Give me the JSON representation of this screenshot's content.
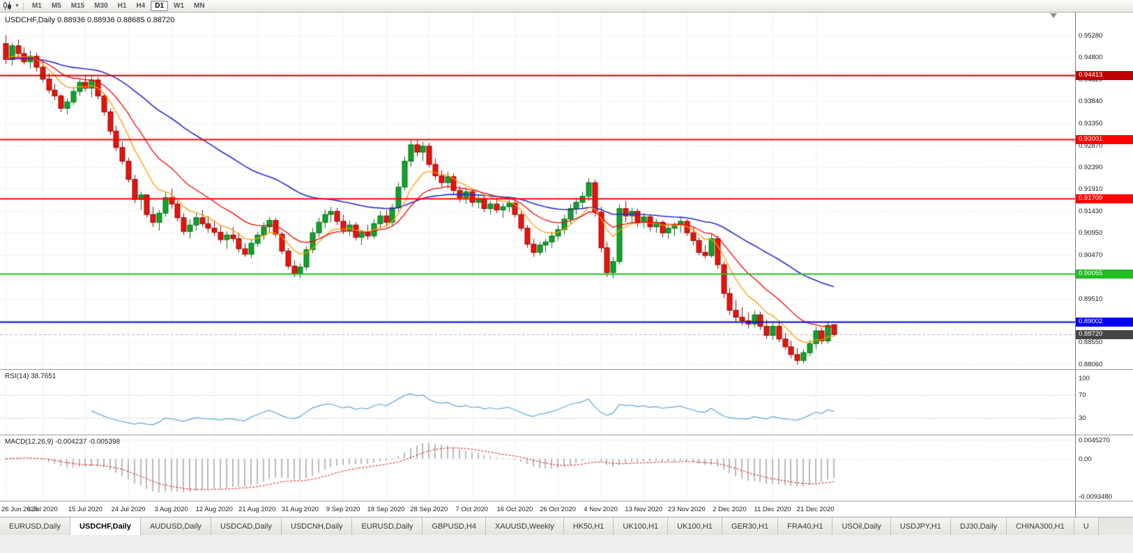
{
  "toolbar": {
    "timeframes": [
      "M1",
      "M5",
      "M15",
      "M30",
      "H1",
      "H4",
      "D1",
      "W1",
      "MN"
    ],
    "active_timeframe": "D1"
  },
  "chart": {
    "symbol": "USDCHF,Daily",
    "title": "USDCHF,Daily 0.88936 0.88936 0.88685 0.88720",
    "ohlc": {
      "open": "0.88936",
      "high": "0.88936",
      "low": "0.88685",
      "close": "0.88720"
    }
  },
  "indicators": {
    "rsi": {
      "label": "RSI(14) 38.7651"
    },
    "macd": {
      "label": "MACD(12,26,9) -0.004237 -0.005398"
    }
  },
  "tabs": [
    {
      "label": "EURUSD,Daily"
    },
    {
      "label": "USDCHF,Daily",
      "active": true
    },
    {
      "label": "AUDUSD,Daily"
    },
    {
      "label": "USDCAD,Daily"
    },
    {
      "label": "USDCNH,Daily"
    },
    {
      "label": "EURUSD,Daily"
    },
    {
      "label": "GBPUSD,H4"
    },
    {
      "label": "XAUUSD,Weekly"
    },
    {
      "label": "HK50,H1"
    },
    {
      "label": "UK100,H1"
    },
    {
      "label": "UK100,H1"
    },
    {
      "label": "GER30,H1"
    },
    {
      "label": "FRA40,H1"
    },
    {
      "label": "USOil,Daily"
    },
    {
      "label": "USDJPY,H1"
    },
    {
      "label": "DJ30,Daily"
    },
    {
      "label": "CHINA300,H1"
    },
    {
      "label": "U"
    }
  ],
  "chart_data": {
    "type": "candlestick",
    "symbol": "USDCHF",
    "timeframe": "Daily",
    "y_range": [
      0.8796,
      0.9578
    ],
    "y_ticks": [
      "0.95280",
      "0.94800",
      "0.94320",
      "0.93840",
      "0.93350",
      "0.92870",
      "0.92390",
      "0.91910",
      "0.91430",
      "0.90950",
      "0.90470",
      "0.89990",
      "0.89510",
      "0.89030",
      "0.88550",
      "0.88060"
    ],
    "x_axis_labels": [
      "26 Jun 2020",
      "6 Jul 2020",
      "15 Jul 2020",
      "24 Jul 2020",
      "3 Aug 2020",
      "12 Aug 2020",
      "21 Aug 2020",
      "31 Aug 2020",
      "9 Sep 2020",
      "18 Sep 2020",
      "28 Sep 2020",
      "7 Oct 2020",
      "16 Oct 2020",
      "26 Oct 2020",
      "4 Nov 2020",
      "13 Nov 2020",
      "23 Nov 2020",
      "2 Dec 2020",
      "11 Dec 2020",
      "21 Dec 2020"
    ],
    "label_indices": [
      0,
      6,
      13,
      20,
      27,
      34,
      41,
      48,
      55,
      62,
      69,
      76,
      83,
      90,
      97,
      104,
      111,
      118,
      125,
      132
    ],
    "colors": {
      "up": "#0fa32a",
      "up_border": "#077018",
      "down": "#e8130c",
      "down_border": "#930a05",
      "grid": "#d9d9d9"
    },
    "horizontal_levels": [
      {
        "value": 0.94413,
        "label": "0.94413",
        "color": "#c00000"
      },
      {
        "value": 0.93001,
        "label": "0.93001",
        "color": "#ff0000"
      },
      {
        "value": 0.91709,
        "label": "0.91709",
        "color": "#ff0000"
      },
      {
        "value": 0.90055,
        "label": "0.90055",
        "color": "#22bb22"
      },
      {
        "value": 0.89002,
        "label": "0.89002",
        "color": "#0000ee"
      }
    ],
    "current_price": {
      "value": 0.8872,
      "label": "0.88720",
      "tag_color": "#454545",
      "line_color": "#b0b0b0"
    },
    "moving_averages": [
      {
        "period": 45,
        "color": "#2929cc",
        "width": 1.6
      },
      {
        "period": 8,
        "color": "#ff9900",
        "width": 1.3
      },
      {
        "period": 16,
        "color": "#f20000",
        "width": 1.3
      }
    ],
    "rsi": {
      "period": 14,
      "value": 38.7651,
      "color": "#58a6d8",
      "levels": [
        70,
        30
      ],
      "scale_labels": [
        {
          "value": 100,
          "label": "100"
        },
        {
          "value": 70,
          "label": "70"
        },
        {
          "value": 30,
          "label": "30"
        }
      ],
      "scale_range": [
        0,
        113
      ]
    },
    "macd": {
      "period_fast": 12,
      "period_slow": 26,
      "period_signal": 9,
      "value": -0.004237,
      "signal": -0.005398,
      "histogram_color": "#b9b9b9",
      "signal_color": "#e01010",
      "scale_labels": [
        {
          "value": 0.004527,
          "label": "0.0045270"
        },
        {
          "value": 0,
          "label": "0.00"
        },
        {
          "value": -0.009348,
          "label": "-0.0093480"
        }
      ],
      "scale_range": [
        -0.0102,
        0.0056
      ]
    },
    "candles": [
      [
        0.951,
        0.9528,
        0.9465,
        0.9475
      ],
      [
        0.9475,
        0.9512,
        0.9462,
        0.9505
      ],
      [
        0.9505,
        0.9519,
        0.948,
        0.9488
      ],
      [
        0.9488,
        0.9502,
        0.9464,
        0.947
      ],
      [
        0.947,
        0.9495,
        0.9455,
        0.9482
      ],
      [
        0.9482,
        0.949,
        0.9448,
        0.9458
      ],
      [
        0.9458,
        0.947,
        0.9425,
        0.9432
      ],
      [
        0.9432,
        0.9445,
        0.94,
        0.9408
      ],
      [
        0.9408,
        0.9422,
        0.9386,
        0.9395
      ],
      [
        0.9395,
        0.94,
        0.936,
        0.9368
      ],
      [
        0.9368,
        0.939,
        0.9355,
        0.9382
      ],
      [
        0.9382,
        0.9415,
        0.9375,
        0.9405
      ],
      [
        0.9405,
        0.9432,
        0.9395,
        0.9425
      ],
      [
        0.9425,
        0.9441,
        0.9405,
        0.9412
      ],
      [
        0.9412,
        0.9438,
        0.9392,
        0.943
      ],
      [
        0.943,
        0.9436,
        0.9388,
        0.9395
      ],
      [
        0.9395,
        0.9402,
        0.9352,
        0.936
      ],
      [
        0.936,
        0.9368,
        0.931,
        0.9318
      ],
      [
        0.9318,
        0.933,
        0.9275,
        0.9282
      ],
      [
        0.9282,
        0.9295,
        0.9245,
        0.9252
      ],
      [
        0.9252,
        0.926,
        0.9205,
        0.9212
      ],
      [
        0.9212,
        0.9222,
        0.916,
        0.9168
      ],
      [
        0.9168,
        0.9185,
        0.9145,
        0.9178
      ],
      [
        0.9178,
        0.918,
        0.9128,
        0.9135
      ],
      [
        0.9135,
        0.9152,
        0.9108,
        0.9118
      ],
      [
        0.9118,
        0.9145,
        0.91,
        0.9138
      ],
      [
        0.9138,
        0.9185,
        0.913,
        0.9172
      ],
      [
        0.9172,
        0.9192,
        0.9148,
        0.9158
      ],
      [
        0.9158,
        0.9165,
        0.912,
        0.9128
      ],
      [
        0.9128,
        0.9138,
        0.909,
        0.9098
      ],
      [
        0.9098,
        0.9125,
        0.9082,
        0.9112
      ],
      [
        0.9112,
        0.9138,
        0.91,
        0.9128
      ],
      [
        0.9128,
        0.9145,
        0.9108,
        0.9115
      ],
      [
        0.9115,
        0.9132,
        0.9095,
        0.9105
      ],
      [
        0.9105,
        0.9122,
        0.9088,
        0.9096
      ],
      [
        0.9096,
        0.911,
        0.9072,
        0.908
      ],
      [
        0.908,
        0.9098,
        0.906,
        0.909
      ],
      [
        0.909,
        0.9108,
        0.9075,
        0.9082
      ],
      [
        0.9082,
        0.9095,
        0.9052,
        0.906
      ],
      [
        0.906,
        0.9072,
        0.9042,
        0.9048
      ],
      [
        0.9048,
        0.908,
        0.904,
        0.9072
      ],
      [
        0.9072,
        0.9098,
        0.9065,
        0.909
      ],
      [
        0.909,
        0.9118,
        0.908,
        0.9108
      ],
      [
        0.9108,
        0.913,
        0.9095,
        0.9122
      ],
      [
        0.9122,
        0.9128,
        0.9085,
        0.9092
      ],
      [
        0.9092,
        0.9098,
        0.9048,
        0.9055
      ],
      [
        0.9055,
        0.9062,
        0.9015,
        0.9022
      ],
      [
        0.9022,
        0.9035,
        0.8998,
        0.9005
      ],
      [
        0.9005,
        0.9028,
        0.8996,
        0.902
      ],
      [
        0.902,
        0.9065,
        0.9012,
        0.9058
      ],
      [
        0.9058,
        0.9105,
        0.905,
        0.9095
      ],
      [
        0.9095,
        0.9128,
        0.9085,
        0.9118
      ],
      [
        0.9118,
        0.9145,
        0.9105,
        0.9135
      ],
      [
        0.9135,
        0.9152,
        0.9118,
        0.9142
      ],
      [
        0.9142,
        0.915,
        0.9112,
        0.912
      ],
      [
        0.912,
        0.9135,
        0.9092,
        0.91
      ],
      [
        0.91,
        0.9122,
        0.9088,
        0.9112
      ],
      [
        0.9112,
        0.9118,
        0.9078,
        0.9085
      ],
      [
        0.9085,
        0.9102,
        0.9068,
        0.9095
      ],
      [
        0.9095,
        0.9112,
        0.908,
        0.9088
      ],
      [
        0.9088,
        0.9125,
        0.9082,
        0.9115
      ],
      [
        0.9115,
        0.9142,
        0.9105,
        0.9132
      ],
      [
        0.9132,
        0.9145,
        0.9108,
        0.9118
      ],
      [
        0.9118,
        0.9158,
        0.911,
        0.915
      ],
      [
        0.915,
        0.9205,
        0.9142,
        0.9195
      ],
      [
        0.9195,
        0.9262,
        0.9188,
        0.9252
      ],
      [
        0.9252,
        0.9298,
        0.924,
        0.9288
      ],
      [
        0.9288,
        0.93,
        0.9262,
        0.9272
      ],
      [
        0.9272,
        0.9295,
        0.9252,
        0.9285
      ],
      [
        0.9285,
        0.9292,
        0.9238,
        0.9245
      ],
      [
        0.9245,
        0.9258,
        0.9212,
        0.922
      ],
      [
        0.922,
        0.9232,
        0.9195,
        0.9205
      ],
      [
        0.9205,
        0.9228,
        0.9192,
        0.9218
      ],
      [
        0.9218,
        0.9225,
        0.9178,
        0.9188
      ],
      [
        0.9188,
        0.9198,
        0.9162,
        0.9172
      ],
      [
        0.9172,
        0.9195,
        0.9158,
        0.9185
      ],
      [
        0.9185,
        0.9192,
        0.9152,
        0.9162
      ],
      [
        0.9162,
        0.9178,
        0.9148,
        0.917
      ],
      [
        0.917,
        0.9176,
        0.914,
        0.9148
      ],
      [
        0.9148,
        0.9165,
        0.9135,
        0.9158
      ],
      [
        0.9158,
        0.9172,
        0.9138,
        0.9145
      ],
      [
        0.9145,
        0.916,
        0.9128,
        0.9152
      ],
      [
        0.9152,
        0.9168,
        0.914,
        0.916
      ],
      [
        0.916,
        0.9165,
        0.9128,
        0.9135
      ],
      [
        0.9135,
        0.9142,
        0.9098,
        0.9105
      ],
      [
        0.9105,
        0.9112,
        0.9062,
        0.907
      ],
      [
        0.907,
        0.9082,
        0.9042,
        0.9052
      ],
      [
        0.9052,
        0.9075,
        0.9045,
        0.9068
      ],
      [
        0.9068,
        0.9082,
        0.9052,
        0.9075
      ],
      [
        0.9075,
        0.9098,
        0.9062,
        0.9088
      ],
      [
        0.9088,
        0.9112,
        0.9078,
        0.9102
      ],
      [
        0.9102,
        0.9135,
        0.9092,
        0.9125
      ],
      [
        0.9125,
        0.9158,
        0.9115,
        0.9148
      ],
      [
        0.9148,
        0.9172,
        0.9135,
        0.9162
      ],
      [
        0.9162,
        0.9185,
        0.9148,
        0.9175
      ],
      [
        0.9175,
        0.9215,
        0.9165,
        0.9205
      ],
      [
        0.9205,
        0.9212,
        0.913,
        0.914
      ],
      [
        0.914,
        0.9152,
        0.9052,
        0.9062
      ],
      [
        0.9062,
        0.9075,
        0.8998,
        0.9008
      ],
      [
        0.9008,
        0.9042,
        0.8995,
        0.9032
      ],
      [
        0.9032,
        0.9158,
        0.9025,
        0.9148
      ],
      [
        0.9148,
        0.9165,
        0.9118,
        0.9132
      ],
      [
        0.9132,
        0.915,
        0.9115,
        0.9142
      ],
      [
        0.9142,
        0.9148,
        0.9108,
        0.9118
      ],
      [
        0.9118,
        0.9138,
        0.9105,
        0.913
      ],
      [
        0.913,
        0.9136,
        0.9098,
        0.9108
      ],
      [
        0.9108,
        0.9125,
        0.9095,
        0.9118
      ],
      [
        0.9118,
        0.9122,
        0.9085,
        0.9095
      ],
      [
        0.9095,
        0.9112,
        0.9082,
        0.9105
      ],
      [
        0.9105,
        0.9118,
        0.9088,
        0.9112
      ],
      [
        0.9112,
        0.9128,
        0.9095,
        0.912
      ],
      [
        0.912,
        0.9125,
        0.9088,
        0.9095
      ],
      [
        0.9095,
        0.9108,
        0.9068,
        0.9078
      ],
      [
        0.9078,
        0.9085,
        0.9045,
        0.9052
      ],
      [
        0.9052,
        0.9068,
        0.9038,
        0.9045
      ],
      [
        0.9045,
        0.9092,
        0.904,
        0.9082
      ],
      [
        0.9082,
        0.9088,
        0.9015,
        0.9025
      ],
      [
        0.9025,
        0.9032,
        0.8952,
        0.8962
      ],
      [
        0.8962,
        0.8975,
        0.8915,
        0.8925
      ],
      [
        0.8925,
        0.8948,
        0.89,
        0.891
      ],
      [
        0.891,
        0.8932,
        0.8892,
        0.8902
      ],
      [
        0.8902,
        0.892,
        0.8885,
        0.8895
      ],
      [
        0.8895,
        0.8925,
        0.8888,
        0.8915
      ],
      [
        0.8915,
        0.8922,
        0.8882,
        0.889
      ],
      [
        0.889,
        0.8905,
        0.8862,
        0.887
      ],
      [
        0.887,
        0.8898,
        0.886,
        0.889
      ],
      [
        0.889,
        0.8902,
        0.8855,
        0.8862
      ],
      [
        0.8862,
        0.8875,
        0.8838,
        0.8845
      ],
      [
        0.8845,
        0.8858,
        0.882,
        0.8828
      ],
      [
        0.8828,
        0.8842,
        0.8806,
        0.8815
      ],
      [
        0.8815,
        0.884,
        0.8808,
        0.8832
      ],
      [
        0.8832,
        0.886,
        0.8825,
        0.8852
      ],
      [
        0.8852,
        0.889,
        0.884,
        0.888
      ],
      [
        0.888,
        0.8886,
        0.885,
        0.8858
      ],
      [
        0.8858,
        0.8898,
        0.8852,
        0.8892
      ],
      [
        0.88936,
        0.88936,
        0.88685,
        0.8872
      ]
    ]
  }
}
